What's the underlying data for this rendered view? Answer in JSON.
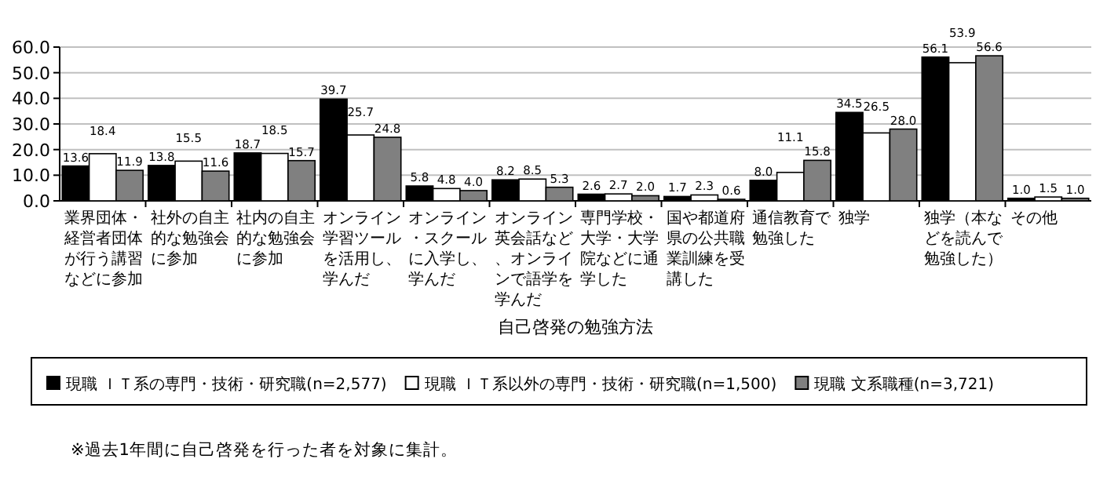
{
  "chart_data": {
    "type": "bar",
    "xlabel": "自己啓発の勉強方法",
    "categories": [
      "業界団体・経営者団体が行う講習などに参加",
      "社外の自主的な勉強会に参加",
      "社内の自主的な勉強会に参加",
      "オンライン学習ツールを活用し、学んだ",
      "オンライン・スクールに入学し、学んだ",
      "オンライン英会話など、オンラインで語学を学んだ",
      "専門学校・大学・大学院などに通学した",
      "国や都道府県の公共職業訓練を受講した",
      "通信教育で勉強した",
      "独学",
      "独学（本などを読んで勉強した）",
      "その他"
    ],
    "series": [
      {
        "name": "現職 ＩＴ系の専門・技術・研究職(n=2,577)",
        "color": "#000000",
        "values": [
          13.6,
          13.8,
          18.7,
          39.7,
          5.8,
          8.2,
          2.6,
          1.7,
          8.0,
          34.5,
          56.1,
          1.0
        ],
        "value_labels": [
          "13.6",
          "13.8",
          "18.7",
          "39.7",
          "5.8",
          "8.2",
          "2.6",
          "1.7",
          "8.0",
          "34.5",
          "56.1",
          "1.0"
        ]
      },
      {
        "name": "現職 ＩＴ系以外の専門・技術・研究職(n=1,500)",
        "color": "#ffffff",
        "values": [
          18.4,
          15.5,
          18.5,
          25.7,
          4.8,
          8.5,
          2.7,
          2.3,
          11.1,
          26.5,
          53.9,
          1.5
        ],
        "value_labels": [
          "18.4",
          "15.5",
          "18.5",
          "25.7",
          "4.8",
          "8.5",
          "2.7",
          "2.3",
          "11.1",
          "26.5",
          "53.9",
          "1.5"
        ]
      },
      {
        "name": "現職 文系職種(n=3,721)",
        "color": "#808080",
        "values": [
          11.9,
          11.6,
          15.7,
          24.8,
          4.0,
          5.3,
          2.0,
          0.6,
          15.8,
          28.0,
          56.6,
          1.0
        ],
        "value_labels": [
          "11.9",
          "11.6",
          "15.7",
          "24.8",
          "4.0",
          "5.3",
          "2.0",
          "0.6",
          "15.8",
          "28.0",
          "56.6",
          "1.0"
        ]
      }
    ],
    "ylim": [
      0,
      60
    ],
    "yticks": [
      {
        "value": 0,
        "label": "0.0"
      },
      {
        "value": 10,
        "label": "10.0"
      },
      {
        "value": 20,
        "label": "20.0"
      },
      {
        "value": 30,
        "label": "30.0"
      },
      {
        "value": 40,
        "label": "40.0"
      },
      {
        "value": 50,
        "label": "50.0"
      },
      {
        "value": 60,
        "label": "60.0"
      }
    ],
    "grid": "y",
    "data_labels": true,
    "legend": "bottom",
    "annotations": [
      "※過去1年間に自己啓発を行った者を対象に集計。"
    ]
  }
}
